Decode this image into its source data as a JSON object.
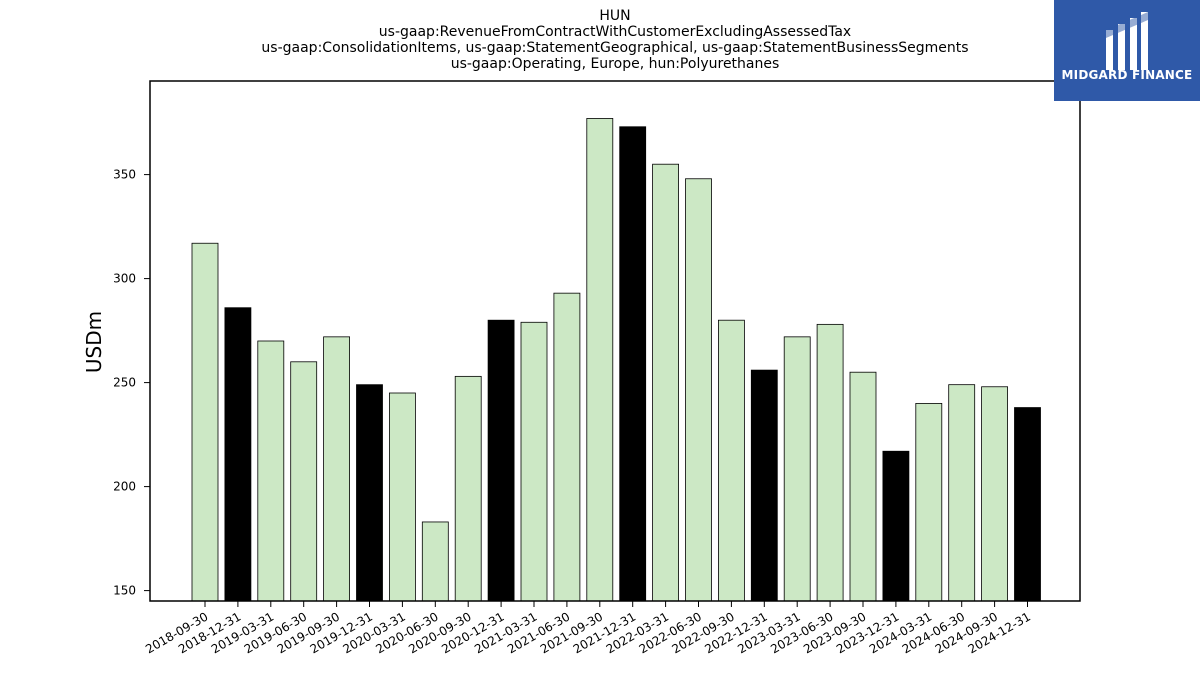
{
  "chart_data": {
    "type": "bar",
    "title_lines": [
      "HUN",
      "us-gaap:RevenueFromContractWithCustomerExcludingAssessedTax",
      "us-gaap:ConsolidationItems, us-gaap:StatementGeographical, us-gaap:StatementBusinessSegments",
      "us-gaap:Operating, Europe, hun:Polyurethanes"
    ],
    "ylabel": "USDm",
    "ylim": [
      145,
      395
    ],
    "yticks": [
      150,
      200,
      250,
      300,
      350
    ],
    "categories": [
      "2018-09-30",
      "2018-12-31",
      "2019-03-31",
      "2019-06-30",
      "2019-09-30",
      "2019-12-31",
      "2020-03-31",
      "2020-06-30",
      "2020-09-30",
      "2020-12-31",
      "2021-03-31",
      "2021-06-30",
      "2021-09-30",
      "2021-12-31",
      "2022-03-31",
      "2022-06-30",
      "2022-09-30",
      "2022-12-31",
      "2023-03-31",
      "2023-06-30",
      "2023-09-30",
      "2023-12-31",
      "2024-03-31",
      "2024-06-30",
      "2024-09-30",
      "2024-12-31"
    ],
    "values": [
      317,
      286,
      270,
      260,
      272,
      249,
      245,
      183,
      253,
      280,
      279,
      293,
      377,
      373,
      355,
      348,
      280,
      256,
      272,
      278,
      255,
      217,
      240,
      249,
      248,
      238
    ],
    "colors": {
      "quarter": "#cce8c5",
      "year_end": "#000000",
      "edge": "#000000"
    },
    "grid": false
  },
  "logo": {
    "text": "MIDGARD FINANCE"
  }
}
